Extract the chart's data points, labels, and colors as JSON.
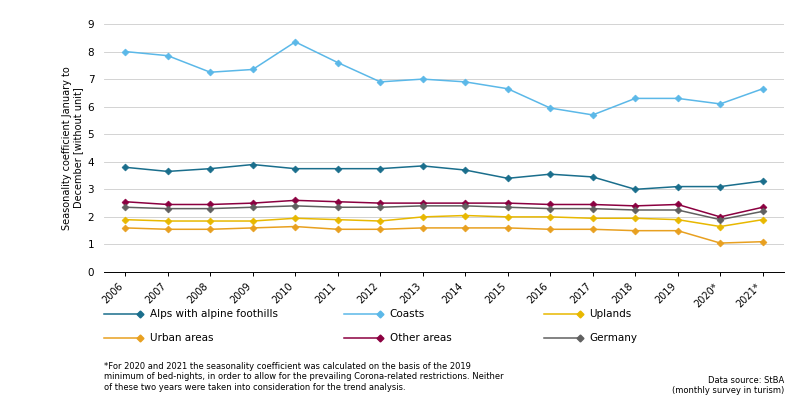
{
  "years_numeric": [
    2006,
    2007,
    2008,
    2009,
    2010,
    2011,
    2012,
    2013,
    2014,
    2015,
    2016,
    2017,
    2018,
    2019,
    2020,
    2021
  ],
  "x_labels": [
    "2006",
    "2007",
    "2008",
    "2009",
    "2010",
    "2011",
    "2012",
    "2013",
    "2014",
    "2015",
    "2016",
    "2017",
    "2018",
    "2019",
    "2020*",
    "2021*"
  ],
  "coasts": [
    8.0,
    7.85,
    7.25,
    7.35,
    8.35,
    7.6,
    6.9,
    7.0,
    6.9,
    6.65,
    5.95,
    5.7,
    6.3,
    6.3,
    6.1,
    6.65
  ],
  "alps": [
    3.8,
    3.65,
    3.75,
    3.9,
    3.75,
    3.75,
    3.75,
    3.85,
    3.7,
    3.4,
    3.55,
    3.45,
    3.0,
    3.1,
    3.1,
    3.3
  ],
  "uplands": [
    1.9,
    1.85,
    1.85,
    1.85,
    1.95,
    1.9,
    1.85,
    2.0,
    2.05,
    2.0,
    2.0,
    1.95,
    1.95,
    1.9,
    1.65,
    1.9
  ],
  "urban": [
    1.6,
    1.55,
    1.55,
    1.6,
    1.65,
    1.55,
    1.55,
    1.6,
    1.6,
    1.6,
    1.55,
    1.55,
    1.5,
    1.5,
    1.05,
    1.1
  ],
  "other": [
    2.55,
    2.45,
    2.45,
    2.5,
    2.6,
    2.55,
    2.5,
    2.5,
    2.5,
    2.5,
    2.45,
    2.45,
    2.4,
    2.45,
    2.0,
    2.35
  ],
  "germany": [
    2.35,
    2.3,
    2.3,
    2.35,
    2.4,
    2.35,
    2.35,
    2.4,
    2.4,
    2.35,
    2.3,
    2.3,
    2.25,
    2.25,
    1.9,
    2.2
  ],
  "color_coasts": "#5BB8E8",
  "color_alps": "#1A6E8C",
  "color_uplands": "#E8B800",
  "color_urban": "#E8A020",
  "color_other": "#8B0040",
  "color_germany": "#606060",
  "ylabel": "Seasonality coefficient January to\nDecember [without unit]",
  "ylim": [
    0,
    9
  ],
  "yticks": [
    0,
    1,
    2,
    3,
    4,
    5,
    6,
    7,
    8,
    9
  ],
  "footnote_left": "*For 2020 and 2021 the seasonality coefficient was calculated on the basis of the 2019\nminimum of bed-nights, in order to allow for the prevailing Corona-related restrictions. Neither\nof these two years were taken into consideration for the trend analysis.",
  "footnote_right": "Data source: StBA\n(monthly survey in turism)",
  "legend_row1": [
    "Alps with alpine foothills",
    "Coasts",
    "Uplands"
  ],
  "legend_row2": [
    "Urban areas",
    "Other areas",
    "Germany"
  ],
  "legend_colors_row1": [
    "#1A6E8C",
    "#5BB8E8",
    "#E8B800"
  ],
  "legend_colors_row2": [
    "#E8A020",
    "#8B0040",
    "#606060"
  ]
}
